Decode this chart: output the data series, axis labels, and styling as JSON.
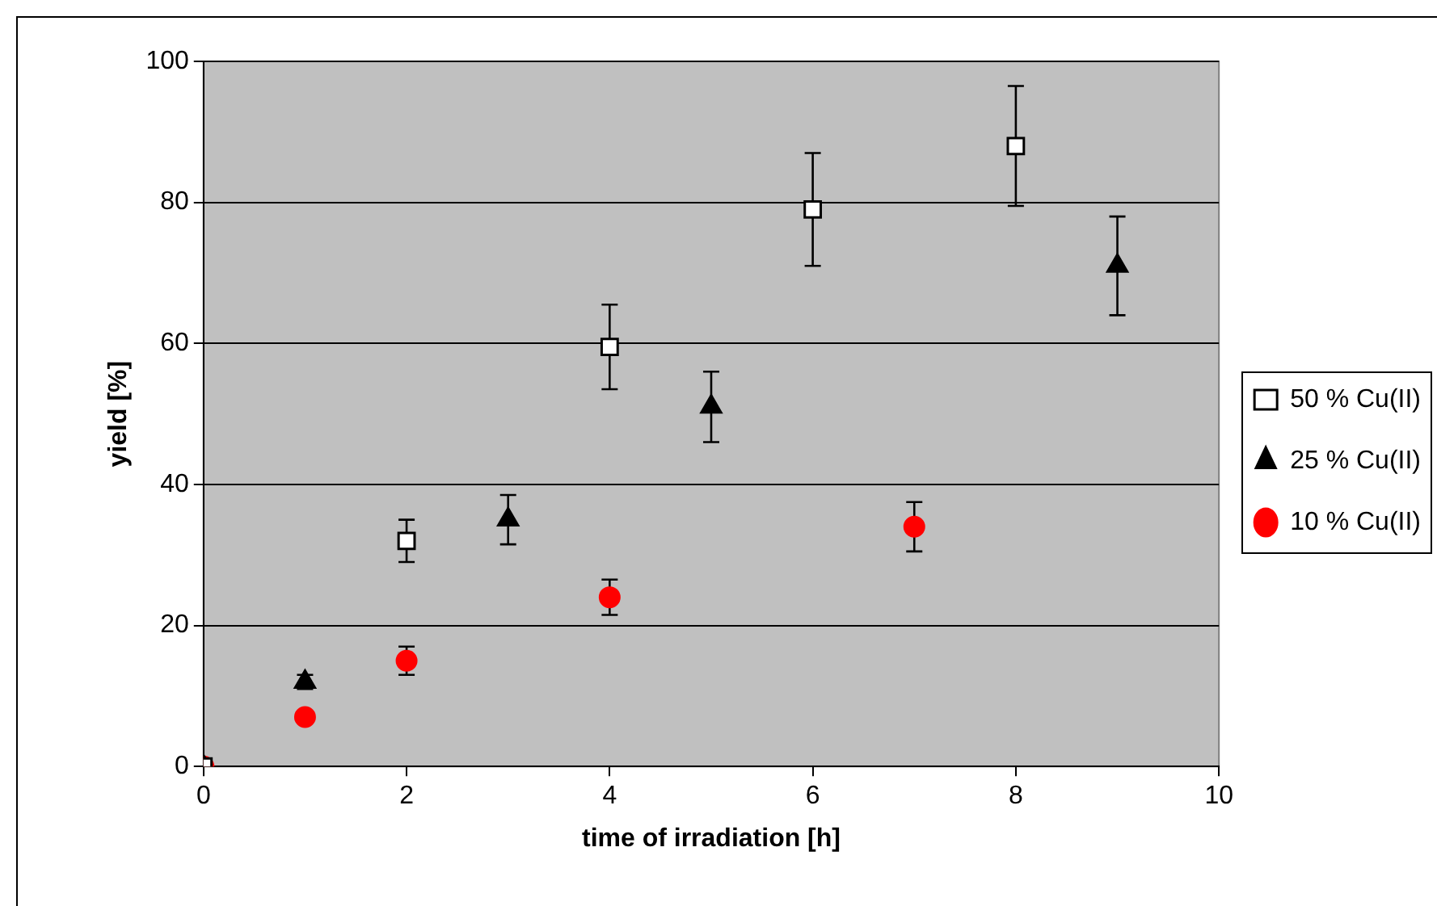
{
  "chart_data": {
    "type": "scatter",
    "xlabel": "time of irradiation [h]",
    "ylabel": "yield [%]",
    "xlim": [
      0,
      10
    ],
    "xticks": [
      0,
      2,
      4,
      6,
      8,
      10
    ],
    "ylim": [
      0,
      100
    ],
    "yticks": [
      0,
      20,
      40,
      60,
      80,
      100
    ],
    "grid": "y",
    "legend": "right",
    "series": [
      {
        "name": "50 % Cu(II)",
        "color": "#ffffff",
        "marker": "square",
        "x": [
          0,
          2,
          4,
          6,
          8
        ],
        "values": [
          0,
          32,
          59.5,
          79,
          88
        ],
        "errors": [
          null,
          3,
          6,
          8,
          8.5
        ]
      },
      {
        "name": "25 % Cu(II)",
        "color": "#000000",
        "marker": "triangle",
        "x": [
          0,
          1,
          3,
          5,
          9
        ],
        "values": [
          0,
          12,
          35,
          51,
          71
        ],
        "errors": [
          null,
          1,
          3.5,
          5,
          7
        ]
      },
      {
        "name": "10 % Cu(II)",
        "color": "#ff0000",
        "marker": "circle",
        "x": [
          0,
          1,
          2,
          4,
          7
        ],
        "values": [
          0,
          7,
          15,
          24,
          34
        ],
        "errors": [
          null,
          null,
          2,
          2.5,
          3.5
        ]
      }
    ]
  }
}
